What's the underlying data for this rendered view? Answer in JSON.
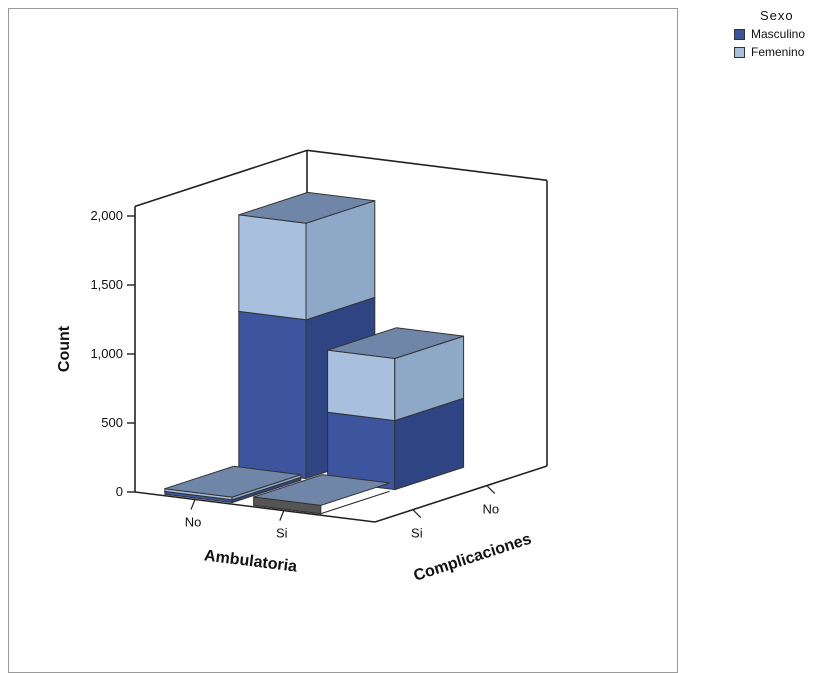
{
  "chart_data": {
    "type": "bar",
    "subtype": "3d-stacked",
    "yaxis_title": "Count",
    "x_axis": {
      "title": "Ambulatoria",
      "categories": [
        "No",
        "Si"
      ]
    },
    "z_axis": {
      "title": "Complicaciones",
      "categories": [
        "Si",
        "No"
      ]
    },
    "y_ticks": [
      "0",
      "500",
      "1,000",
      "1,500",
      "2,000"
    ],
    "ylim": [
      0,
      2000
    ],
    "legend": {
      "title": "Sexo",
      "position": "top-right",
      "entries": [
        {
          "name": "Masculino",
          "color": "#3d559e"
        },
        {
          "name": "Femenino",
          "color": "#a8c0de"
        }
      ]
    },
    "series": [
      {
        "name": "Masculino",
        "values": [
          {
            "ambulatoria": "No",
            "complicaciones": "Si",
            "value": 20
          },
          {
            "ambulatoria": "No",
            "complicaciones": "No",
            "value": 1150
          },
          {
            "ambulatoria": "Si",
            "complicaciones": "Si",
            "value": 0
          },
          {
            "ambulatoria": "Si",
            "complicaciones": "No",
            "value": 500
          }
        ]
      },
      {
        "name": "Femenino",
        "values": [
          {
            "ambulatoria": "No",
            "complicaciones": "Si",
            "value": 20
          },
          {
            "ambulatoria": "No",
            "complicaciones": "No",
            "value": 700
          },
          {
            "ambulatoria": "Si",
            "complicaciones": "Si",
            "value": 0
          },
          {
            "ambulatoria": "Si",
            "complicaciones": "No",
            "value": 450
          }
        ]
      }
    ]
  }
}
